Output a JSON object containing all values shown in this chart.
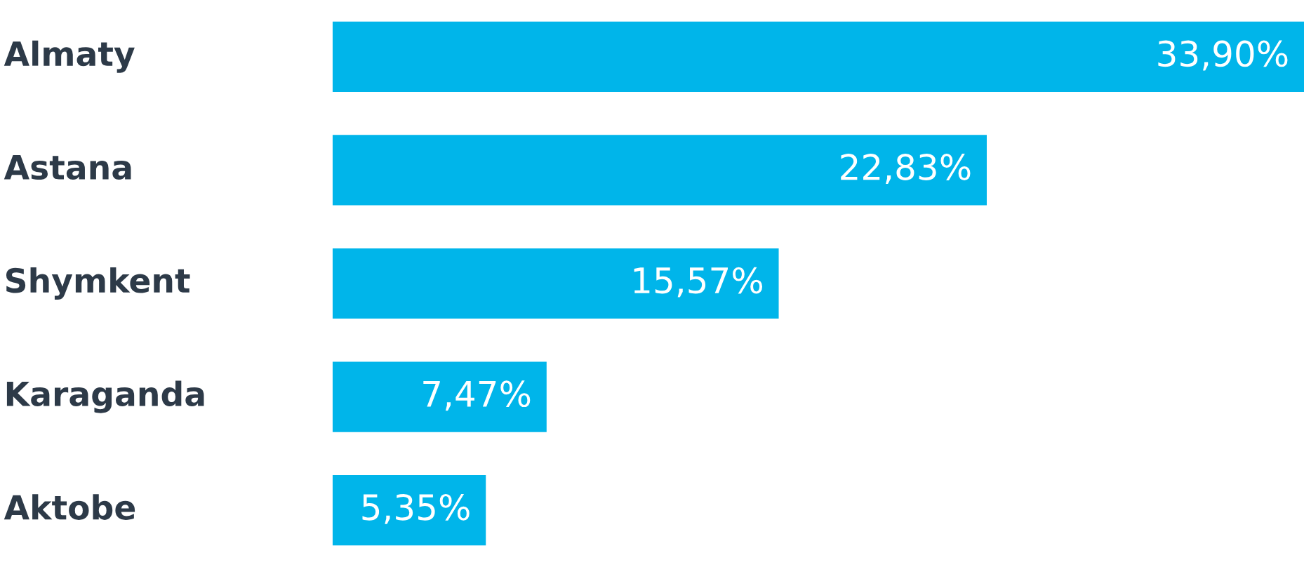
{
  "chart_data": {
    "type": "bar",
    "orientation": "horizontal",
    "categories": [
      "Almaty",
      "Astana",
      "Shymkent",
      "Karaganda",
      "Aktobe"
    ],
    "values": [
      33.9,
      22.83,
      15.57,
      7.47,
      5.35
    ],
    "value_labels": [
      "33,90%",
      "22,83%",
      "15,57%",
      "7,47%",
      "5,35%"
    ],
    "color": "#00b5ea"
  }
}
